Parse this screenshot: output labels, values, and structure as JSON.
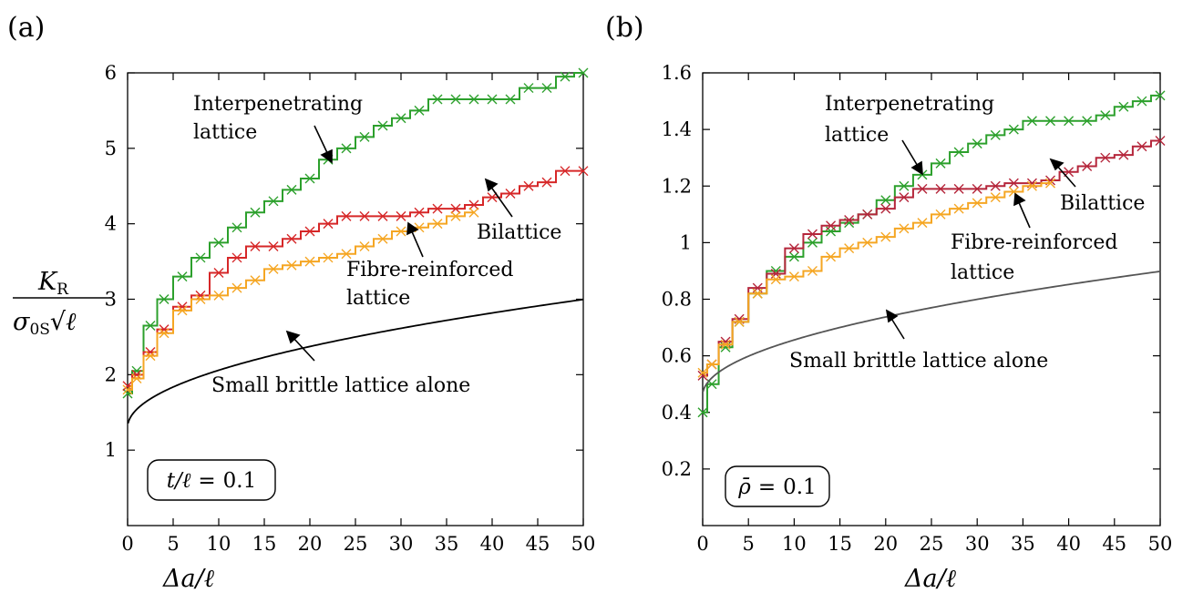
{
  "chart_data": [
    {
      "type": "line",
      "panel_label": "(a)",
      "xlabel": "Δa/ℓ",
      "ylabel_numerator": "K_R",
      "ylabel_denominator": "σ_0S √ℓ",
      "ylabel_parts": {
        "num_main": "K",
        "num_sub": "R",
        "den_main": "σ",
        "den_sub": "0S",
        "den_sqrt": "√",
        "den_var": "ℓ"
      },
      "xlim": [
        0,
        50
      ],
      "ylim": [
        0,
        6
      ],
      "xticks": [
        "0",
        "5",
        "10",
        "15",
        "20",
        "25",
        "30",
        "35",
        "40",
        "45",
        "50"
      ],
      "yticks": [
        "1",
        "2",
        "3",
        "4",
        "5",
        "6"
      ],
      "parameter_box": "t/ℓ = 0.1",
      "parameter_parts": {
        "lhs": "t/ℓ",
        "eq": "=",
        "rhs": "0.1"
      },
      "colors": {
        "interpenetrating": "#2ca02c",
        "bilattice": "#d62728",
        "fibre": "#f5a623",
        "brittle": "#000000"
      },
      "series": [
        {
          "key": "interpenetrating",
          "label_line1": "Interpenetrating",
          "label_line2": "lattice",
          "x": [
            0,
            1,
            2.5,
            4,
            6,
            8,
            10,
            12,
            14,
            16,
            18,
            20,
            22,
            24,
            26,
            28,
            30,
            32,
            34,
            36,
            38,
            40,
            42,
            44,
            46,
            48,
            50
          ],
          "y": [
            1.75,
            2.05,
            2.65,
            3.0,
            3.3,
            3.55,
            3.75,
            3.95,
            4.15,
            4.3,
            4.45,
            4.6,
            4.85,
            5.0,
            5.15,
            5.3,
            5.4,
            5.5,
            5.65,
            5.65,
            5.65,
            5.65,
            5.65,
            5.8,
            5.8,
            5.95,
            6.0
          ]
        },
        {
          "key": "bilattice",
          "label_line1": "Bilattice",
          "label_line2": "",
          "x": [
            0,
            1,
            2.5,
            4,
            6,
            8,
            10,
            12,
            14,
            16,
            18,
            20,
            22,
            24,
            26,
            28,
            30,
            32,
            34,
            36,
            38,
            40,
            42,
            44,
            46,
            48,
            50
          ],
          "y": [
            1.85,
            2.0,
            2.3,
            2.6,
            2.9,
            3.05,
            3.35,
            3.55,
            3.7,
            3.7,
            3.8,
            3.9,
            4.0,
            4.1,
            4.1,
            4.1,
            4.1,
            4.15,
            4.2,
            4.2,
            4.25,
            4.35,
            4.4,
            4.5,
            4.55,
            4.7,
            4.7
          ]
        },
        {
          "key": "fibre",
          "label_line1": "Fibre-reinforced",
          "label_line2": "lattice",
          "x": [
            0,
            1,
            2.5,
            4,
            6,
            8,
            10,
            12,
            14,
            16,
            18,
            20,
            22,
            24,
            26,
            28,
            30,
            32,
            34,
            36,
            38
          ],
          "y": [
            1.8,
            1.95,
            2.25,
            2.55,
            2.85,
            3.0,
            3.05,
            3.15,
            3.25,
            3.4,
            3.45,
            3.5,
            3.55,
            3.6,
            3.7,
            3.8,
            3.9,
            3.95,
            4.0,
            4.1,
            4.15
          ]
        },
        {
          "key": "brittle",
          "label_line1": "Small brittle lattice alone",
          "label_line2": "",
          "formula": "1.3 + 0.24*sqrt(x)",
          "xmin": 0.05,
          "xmax": 50
        }
      ]
    },
    {
      "type": "line",
      "panel_label": "(b)",
      "xlabel": "Δa/ℓ",
      "xlim": [
        0,
        50
      ],
      "ylim": [
        0,
        1.6
      ],
      "xticks": [
        "0",
        "5",
        "10",
        "15",
        "20",
        "25",
        "30",
        "35",
        "40",
        "45",
        "50"
      ],
      "yticks": [
        "0.2",
        "0.4",
        "0.6",
        "0.8",
        "1",
        "1.2",
        "1.4",
        "1.6"
      ],
      "parameter_box": "ρ̄ = 0.1",
      "parameter_parts": {
        "lhs": "ρ̄",
        "eq": "=",
        "rhs": "0.1"
      },
      "colors": {
        "interpenetrating": "#2ca02c",
        "bilattice": "#b5263b",
        "fibre": "#f5a623",
        "brittle": "#555555"
      },
      "series": [
        {
          "key": "interpenetrating",
          "label_line1": "Interpenetrating",
          "label_line2": "lattice",
          "x": [
            0,
            1,
            2.5,
            4,
            6,
            8,
            10,
            12,
            14,
            16,
            18,
            20,
            22,
            24,
            26,
            28,
            30,
            32,
            34,
            36,
            38,
            40,
            42,
            44,
            46,
            48,
            50
          ],
          "y": [
            0.4,
            0.5,
            0.63,
            0.72,
            0.82,
            0.9,
            0.95,
            1.0,
            1.04,
            1.07,
            1.1,
            1.15,
            1.2,
            1.24,
            1.28,
            1.32,
            1.35,
            1.38,
            1.4,
            1.43,
            1.43,
            1.43,
            1.43,
            1.45,
            1.48,
            1.5,
            1.52
          ]
        },
        {
          "key": "bilattice",
          "label_line1": "Bilattice",
          "label_line2": "",
          "x": [
            0,
            1,
            2.5,
            4,
            6,
            8,
            10,
            12,
            14,
            16,
            18,
            20,
            22,
            24,
            26,
            28,
            30,
            32,
            34,
            36,
            38,
            40,
            42,
            44,
            46,
            48,
            50
          ],
          "y": [
            0.53,
            0.57,
            0.65,
            0.73,
            0.84,
            0.89,
            0.98,
            1.03,
            1.06,
            1.08,
            1.1,
            1.12,
            1.16,
            1.19,
            1.19,
            1.19,
            1.19,
            1.2,
            1.21,
            1.21,
            1.22,
            1.25,
            1.27,
            1.3,
            1.31,
            1.34,
            1.36
          ]
        },
        {
          "key": "fibre",
          "label_line1": "Fibre-reinforced",
          "label_line2": "lattice",
          "x": [
            0,
            1,
            2.5,
            4,
            6,
            8,
            10,
            12,
            14,
            16,
            18,
            20,
            22,
            24,
            26,
            28,
            30,
            32,
            34,
            36,
            38
          ],
          "y": [
            0.54,
            0.57,
            0.64,
            0.72,
            0.82,
            0.87,
            0.88,
            0.9,
            0.95,
            0.98,
            1.0,
            1.02,
            1.05,
            1.07,
            1.1,
            1.12,
            1.14,
            1.16,
            1.18,
            1.2,
            1.21
          ]
        },
        {
          "key": "brittle",
          "label_line1": "Small brittle lattice alone",
          "label_line2": "",
          "formula": "0.46 + 0.062*sqrt(x)",
          "xmin": 0.05,
          "xmax": 50
        }
      ]
    }
  ]
}
